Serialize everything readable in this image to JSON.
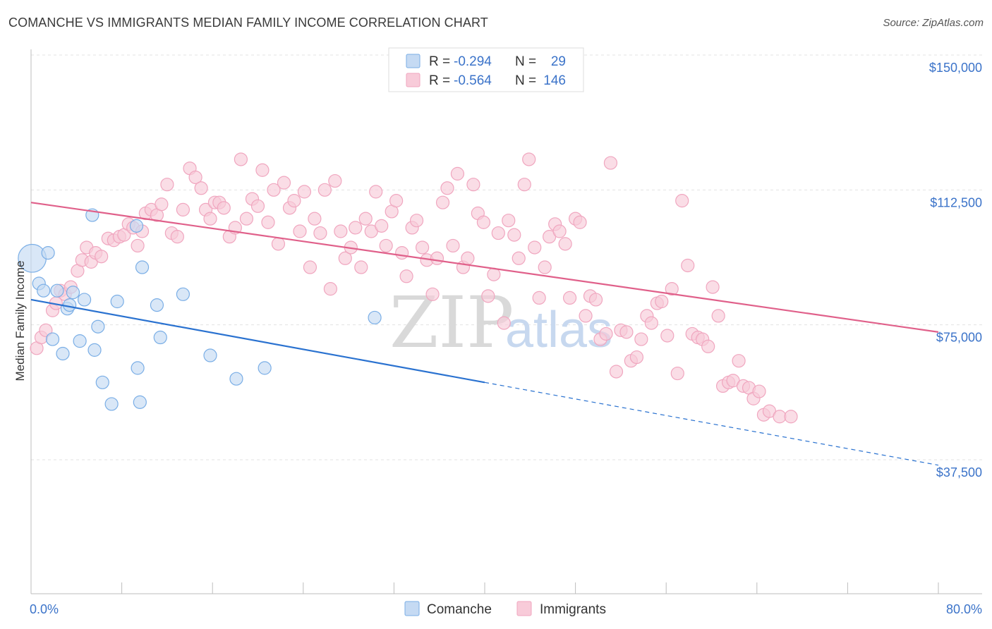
{
  "title": "COMANCHE VS IMMIGRANTS MEDIAN FAMILY INCOME CORRELATION CHART",
  "source": "Source: ZipAtlas.com",
  "watermark": {
    "zip": "ZIP",
    "atlas": "atlas"
  },
  "chart_data": {
    "type": "scatter",
    "title": "COMANCHE VS IMMIGRANTS MEDIAN FAMILY INCOME CORRELATION CHART",
    "xlabel": "",
    "ylabel": "Median Family Income",
    "xlim": [
      0,
      80
    ],
    "ylim": [
      0,
      155000
    ],
    "x_tick_labels": {
      "left": "0.0%",
      "right": "80.0%"
    },
    "y_ticks": [
      {
        "value": 150000,
        "label": "$150,000"
      },
      {
        "value": 112500,
        "label": "$112,500"
      },
      {
        "value": 75000,
        "label": "$75,000"
      },
      {
        "value": 37500,
        "label": "$37,500"
      }
    ],
    "grid": true,
    "legend_position": "top-center",
    "series": [
      {
        "name": "Comanche",
        "color": "#7aaee6",
        "fill": "#c5daf3",
        "line_color": "#2a72d0",
        "stats": {
          "r_label": "R =",
          "r": "-0.294",
          "n_label": "N =",
          "n": "29"
        },
        "trend": {
          "x0": 0,
          "y0": 82000,
          "x1": 80,
          "y1": 36000,
          "solid_until": 40
        },
        "points": [
          [
            0.1,
            93500,
            2.2
          ],
          [
            0.7,
            86500,
            1
          ],
          [
            1.1,
            84500,
            1
          ],
          [
            1.5,
            95000,
            1
          ],
          [
            1.9,
            71000,
            1
          ],
          [
            2.3,
            84500,
            1
          ],
          [
            2.8,
            67000,
            1
          ],
          [
            3.2,
            79500,
            1
          ],
          [
            3.4,
            80500,
            1
          ],
          [
            3.7,
            84000,
            1
          ],
          [
            4.3,
            70500,
            1
          ],
          [
            4.7,
            82000,
            1
          ],
          [
            5.4,
            105500,
            1
          ],
          [
            5.6,
            68000,
            1
          ],
          [
            5.9,
            74500,
            1
          ],
          [
            6.3,
            59000,
            1
          ],
          [
            7.1,
            53000,
            1
          ],
          [
            7.6,
            81500,
            1
          ],
          [
            9.4,
            63000,
            1
          ],
          [
            9.6,
            53500,
            1
          ],
          [
            9.8,
            91000,
            1
          ],
          [
            11.1,
            80500,
            1
          ],
          [
            11.4,
            71500,
            1
          ],
          [
            13.4,
            83500,
            1
          ],
          [
            15.8,
            66500,
            1
          ],
          [
            18.1,
            60000,
            1
          ],
          [
            20.6,
            63000,
            1
          ],
          [
            30.3,
            77000,
            1
          ],
          [
            9.3,
            102500,
            1
          ]
        ]
      },
      {
        "name": "Immigrants",
        "color": "#f0a6bf",
        "fill": "#f8cbd9",
        "line_color": "#e0608a",
        "stats": {
          "r_label": "R =",
          "r": "-0.564",
          "n_label": "N =",
          "n": "146"
        },
        "trend": {
          "x0": 0,
          "y0": 109000,
          "x1": 80,
          "y1": 73000,
          "solid_until": 80
        },
        "points": [
          [
            0.5,
            68500
          ],
          [
            0.9,
            71500
          ],
          [
            1.3,
            73500
          ],
          [
            1.9,
            79000
          ],
          [
            2.2,
            81000
          ],
          [
            2.6,
            84500
          ],
          [
            3.0,
            83500
          ],
          [
            3.5,
            85500
          ],
          [
            4.1,
            90000
          ],
          [
            4.5,
            93000
          ],
          [
            4.9,
            96500
          ],
          [
            5.3,
            92500
          ],
          [
            5.7,
            95000
          ],
          [
            6.2,
            94000
          ],
          [
            6.8,
            99000
          ],
          [
            7.3,
            98500
          ],
          [
            7.8,
            99500
          ],
          [
            8.2,
            100000
          ],
          [
            8.6,
            103000
          ],
          [
            9.0,
            102000
          ],
          [
            9.4,
            97000
          ],
          [
            9.8,
            101000
          ],
          [
            10.1,
            106000
          ],
          [
            10.6,
            107000
          ],
          [
            11.1,
            105500
          ],
          [
            11.5,
            108500
          ],
          [
            12.0,
            114000
          ],
          [
            12.4,
            100500
          ],
          [
            12.9,
            99500
          ],
          [
            13.4,
            107000
          ],
          [
            14.0,
            118500
          ],
          [
            14.5,
            116000
          ],
          [
            15.0,
            113000
          ],
          [
            15.4,
            107000
          ],
          [
            15.8,
            104500
          ],
          [
            16.2,
            109000
          ],
          [
            16.6,
            109000
          ],
          [
            17.0,
            107500
          ],
          [
            17.5,
            99500
          ],
          [
            18.0,
            102000
          ],
          [
            18.5,
            121000
          ],
          [
            19.0,
            104500
          ],
          [
            19.5,
            110000
          ],
          [
            20.0,
            108000
          ],
          [
            20.4,
            118000
          ],
          [
            20.9,
            103500
          ],
          [
            21.4,
            112500
          ],
          [
            21.8,
            97500
          ],
          [
            22.3,
            114500
          ],
          [
            22.8,
            107500
          ],
          [
            23.2,
            109500
          ],
          [
            23.7,
            101000
          ],
          [
            24.1,
            112000
          ],
          [
            24.6,
            91000
          ],
          [
            25.0,
            104500
          ],
          [
            25.5,
            100500
          ],
          [
            25.9,
            112500
          ],
          [
            26.4,
            85000
          ],
          [
            26.8,
            115000
          ],
          [
            27.3,
            101000
          ],
          [
            27.7,
            93500
          ],
          [
            28.2,
            96500
          ],
          [
            28.6,
            102000
          ],
          [
            29.1,
            91000
          ],
          [
            29.5,
            104500
          ],
          [
            30.0,
            101000
          ],
          [
            30.4,
            112000
          ],
          [
            30.9,
            102500
          ],
          [
            31.3,
            97000
          ],
          [
            31.8,
            106500
          ],
          [
            32.2,
            109500
          ],
          [
            32.7,
            95000
          ],
          [
            33.1,
            88500
          ],
          [
            33.6,
            102000
          ],
          [
            34.0,
            104000
          ],
          [
            34.5,
            96500
          ],
          [
            34.9,
            93000
          ],
          [
            35.4,
            83500
          ],
          [
            35.8,
            93500
          ],
          [
            36.3,
            109000
          ],
          [
            36.7,
            113000
          ],
          [
            37.2,
            97000
          ],
          [
            37.6,
            117000
          ],
          [
            38.1,
            91000
          ],
          [
            38.5,
            93500
          ],
          [
            39.0,
            114000
          ],
          [
            39.4,
            106000
          ],
          [
            39.9,
            103500
          ],
          [
            40.3,
            83000
          ],
          [
            40.8,
            89000
          ],
          [
            41.2,
            100500
          ],
          [
            41.7,
            75500
          ],
          [
            42.1,
            104000
          ],
          [
            42.6,
            100000
          ],
          [
            43.0,
            93500
          ],
          [
            43.5,
            114000
          ],
          [
            43.9,
            121000
          ],
          [
            44.4,
            96500
          ],
          [
            44.8,
            82500
          ],
          [
            45.3,
            91000
          ],
          [
            45.7,
            99500
          ],
          [
            46.2,
            103000
          ],
          [
            46.6,
            101000
          ],
          [
            47.1,
            97500
          ],
          [
            47.5,
            82500
          ],
          [
            48.0,
            104500
          ],
          [
            48.4,
            103500
          ],
          [
            48.9,
            77500
          ],
          [
            49.3,
            83000
          ],
          [
            49.8,
            82000
          ],
          [
            50.2,
            71000
          ],
          [
            50.7,
            72500
          ],
          [
            51.1,
            120000
          ],
          [
            51.6,
            62000
          ],
          [
            52.0,
            73500
          ],
          [
            52.5,
            73000
          ],
          [
            52.9,
            65000
          ],
          [
            53.4,
            66000
          ],
          [
            53.8,
            71000
          ],
          [
            54.3,
            77500
          ],
          [
            54.7,
            75500
          ],
          [
            55.2,
            81000
          ],
          [
            55.6,
            81500
          ],
          [
            56.1,
            72000
          ],
          [
            56.5,
            85000
          ],
          [
            57.0,
            61500
          ],
          [
            57.4,
            109500
          ],
          [
            57.9,
            91500
          ],
          [
            58.3,
            72500
          ],
          [
            58.8,
            71500
          ],
          [
            59.2,
            71000
          ],
          [
            59.7,
            69000
          ],
          [
            60.1,
            85500
          ],
          [
            60.6,
            77500
          ],
          [
            61.0,
            58000
          ],
          [
            61.5,
            59000
          ],
          [
            61.9,
            59500
          ],
          [
            62.4,
            65000
          ],
          [
            62.8,
            58000
          ],
          [
            63.3,
            57500
          ],
          [
            63.7,
            54500
          ],
          [
            64.2,
            56500
          ],
          [
            64.6,
            50000
          ],
          [
            65.1,
            51000
          ],
          [
            66.0,
            49500
          ],
          [
            67.0,
            49500
          ]
        ]
      }
    ]
  },
  "legend_top": {
    "rows": [
      {
        "r_label": "R =",
        "r": "-0.294",
        "n_label": "N =",
        "n": "29"
      },
      {
        "r_label": "R =",
        "r": "-0.564",
        "n_label": "N =",
        "n": "146"
      }
    ]
  },
  "legend_bottom": {
    "items": [
      "Comanche",
      "Immigrants"
    ]
  }
}
